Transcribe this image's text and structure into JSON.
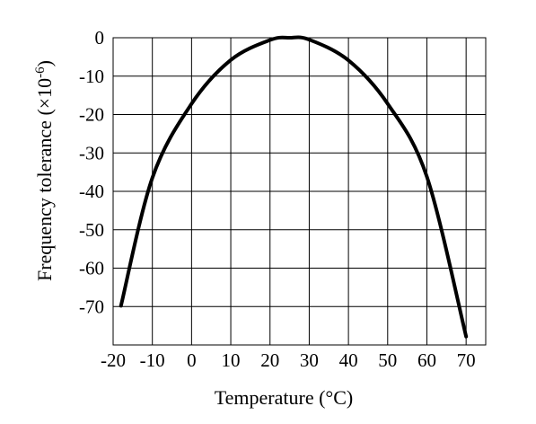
{
  "chart_data": {
    "type": "line",
    "xlabel": "Temperature (°C)",
    "ylabel_main": "Frequency tolerance (×10",
    "ylabel_exp": "-6",
    "ylabel_close": ")",
    "xlim": [
      -20,
      75
    ],
    "ylim": [
      -80,
      0
    ],
    "grid": true,
    "x_ticks": [
      -20,
      -10,
      0,
      10,
      20,
      30,
      40,
      50,
      60,
      70
    ],
    "x_tick_labels": [
      "-20",
      "-10",
      "0",
      "10",
      "20",
      "30",
      "40",
      "50",
      "60",
      "70"
    ],
    "y_ticks": [
      0,
      -10,
      -20,
      -30,
      -40,
      -50,
      -60,
      -70
    ],
    "y_tick_labels": [
      "0",
      "-10",
      "-20",
      "-30",
      "-40",
      "-50",
      "-60",
      "-70"
    ],
    "series": [
      {
        "x": [
          -18,
          -10,
          0,
          10,
          20,
          25,
          30,
          40,
          50,
          60,
          70
        ],
        "y": [
          -69.8,
          -36.5,
          -17.2,
          -5.8,
          -0.6,
          0,
          -0.5,
          -5.9,
          -17.2,
          -36.2,
          -77.8
        ]
      }
    ]
  }
}
